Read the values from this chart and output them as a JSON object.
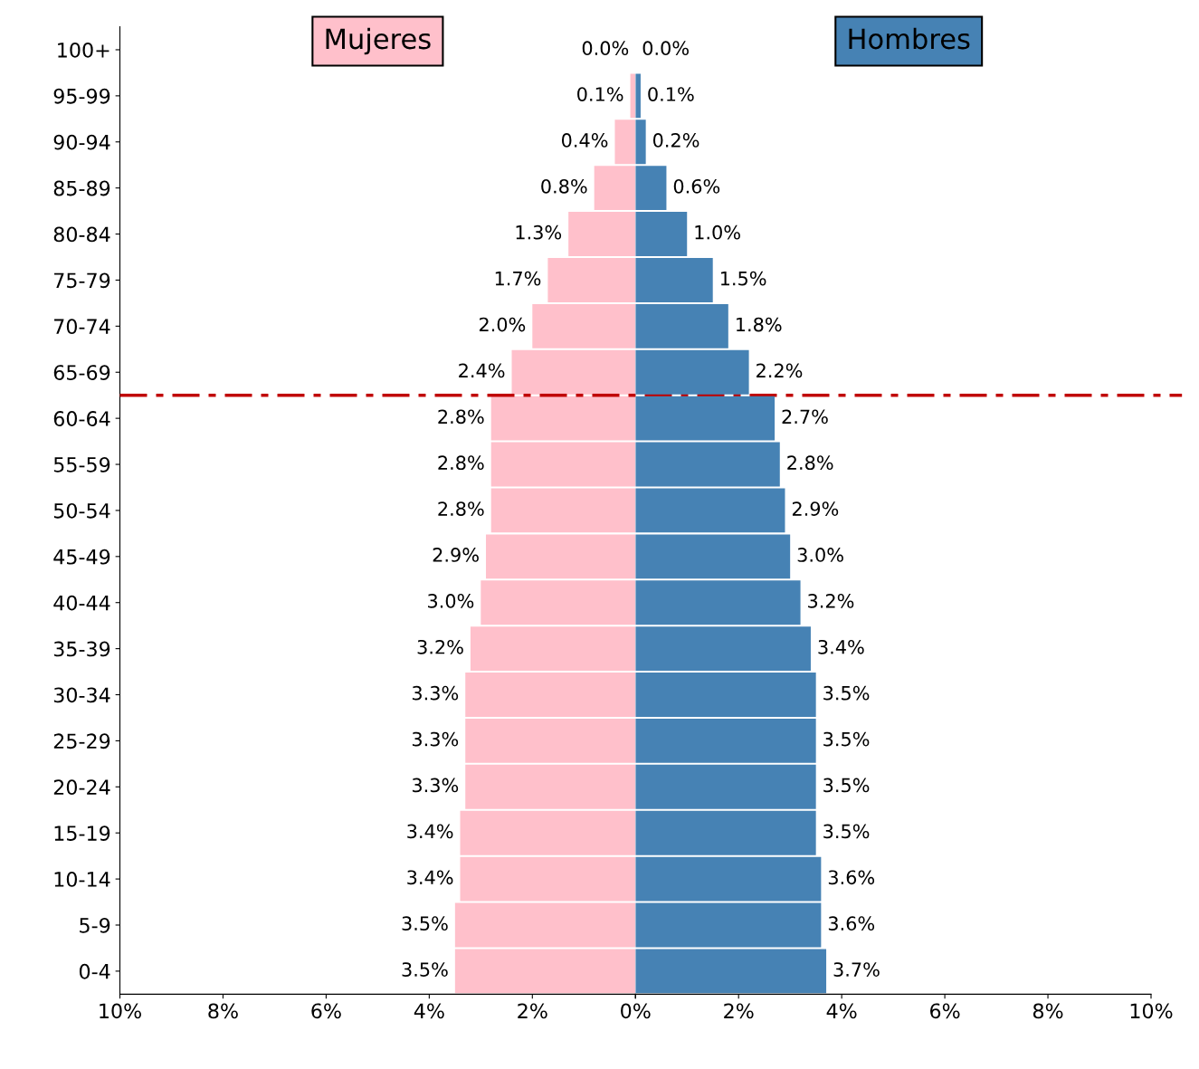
{
  "chart_data": [
    {
      "type": "bar",
      "orientation": "horizontal",
      "categories": [
        "100+",
        "95-99",
        "90-94",
        "85-89",
        "80-84",
        "75-79",
        "70-74",
        "65-69",
        "60-64",
        "55-59",
        "50-54",
        "45-49",
        "40-44",
        "35-39",
        "30-34",
        "25-29",
        "20-24",
        "15-19",
        "10-14",
        "5-9",
        "0-4"
      ],
      "series": [
        {
          "name": "Mujeres",
          "color": "#ffc0cb",
          "values": [
            0.0,
            0.1,
            0.4,
            0.8,
            1.3,
            1.7,
            2.0,
            2.4,
            2.8,
            2.8,
            2.8,
            2.9,
            3.0,
            3.2,
            3.3,
            3.3,
            3.3,
            3.4,
            3.4,
            3.5,
            3.5
          ],
          "value_labels": [
            "0.0%",
            "0.1%",
            "0.4%",
            "0.8%",
            "1.3%",
            "1.7%",
            "2.0%",
            "2.4%",
            "2.8%",
            "2.8%",
            "2.8%",
            "2.9%",
            "3.0%",
            "3.2%",
            "3.3%",
            "3.3%",
            "3.3%",
            "3.4%",
            "3.4%",
            "3.5%",
            "3.5%"
          ]
        }
      ],
      "xlim": [
        10,
        0
      ],
      "xticks": [
        {
          "value": 10,
          "label": "10%"
        },
        {
          "value": 8,
          "label": "8%"
        },
        {
          "value": 6,
          "label": "6%"
        },
        {
          "value": 4,
          "label": "4%"
        },
        {
          "value": 2,
          "label": "2%"
        },
        {
          "value": 0,
          "label": null
        }
      ],
      "legend": "top"
    },
    {
      "type": "bar",
      "orientation": "horizontal",
      "categories": [
        null,
        null,
        null,
        null,
        null,
        null,
        null,
        null,
        null,
        null,
        null,
        null,
        null,
        null,
        null,
        null,
        null,
        null,
        null,
        null,
        null
      ],
      "series": [
        {
          "name": "Hombres",
          "color": "#4682b4",
          "values": [
            0.0,
            0.1,
            0.2,
            0.6,
            1.0,
            1.5,
            1.8,
            2.2,
            2.7,
            2.8,
            2.9,
            3.0,
            3.2,
            3.4,
            3.5,
            3.5,
            3.5,
            3.5,
            3.6,
            3.6,
            3.7
          ],
          "value_labels": [
            "0.0%",
            "0.1%",
            "0.2%",
            "0.6%",
            "1.0%",
            "1.5%",
            "1.8%",
            "2.2%",
            "2.7%",
            "2.8%",
            "2.9%",
            "3.0%",
            "3.2%",
            "3.4%",
            "3.5%",
            "3.5%",
            "3.5%",
            "3.5%",
            "3.6%",
            "3.6%",
            "3.7%"
          ]
        }
      ],
      "xlim": [
        0,
        10
      ],
      "xticks": [
        {
          "value": 0,
          "label": "0%"
        },
        {
          "value": 2,
          "label": "2%"
        },
        {
          "value": 4,
          "label": "4%"
        },
        {
          "value": 6,
          "label": "6%"
        },
        {
          "value": 8,
          "label": "8%"
        },
        {
          "value": 10,
          "label": "10%"
        }
      ],
      "tick_labels": "x",
      "legend": "top"
    }
  ]
}
